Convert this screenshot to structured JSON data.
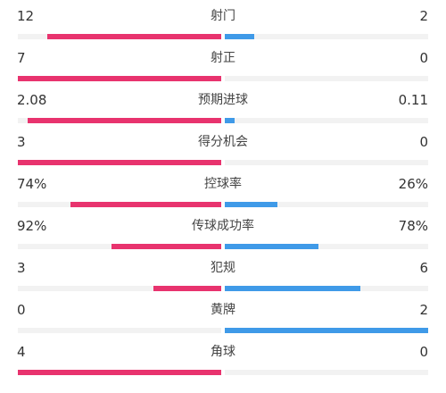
{
  "colors": {
    "home": "#e8336e",
    "away": "#3f9ae8",
    "track": "#f2f2f2"
  },
  "stats": [
    {
      "label": "射门",
      "home": "12",
      "away": "2",
      "home_ratio": 0.857,
      "away_ratio": 0.143
    },
    {
      "label": "射正",
      "home": "7",
      "away": "0",
      "home_ratio": 1.0,
      "away_ratio": 0.0
    },
    {
      "label": "预期进球",
      "home": "2.08",
      "away": "0.11",
      "home_ratio": 0.95,
      "away_ratio": 0.05
    },
    {
      "label": "得分机会",
      "home": "3",
      "away": "0",
      "home_ratio": 1.0,
      "away_ratio": 0.0
    },
    {
      "label": "控球率",
      "home": "74%",
      "away": "26%",
      "home_ratio": 0.74,
      "away_ratio": 0.26
    },
    {
      "label": "传球成功率",
      "home": "92%",
      "away": "78%",
      "home_ratio": 0.54,
      "away_ratio": 0.46
    },
    {
      "label": "犯规",
      "home": "3",
      "away": "6",
      "home_ratio": 0.333,
      "away_ratio": 0.667
    },
    {
      "label": "黄牌",
      "home": "0",
      "away": "2",
      "home_ratio": 0.0,
      "away_ratio": 1.0
    },
    {
      "label": "角球",
      "home": "4",
      "away": "0",
      "home_ratio": 1.0,
      "away_ratio": 0.0
    }
  ]
}
